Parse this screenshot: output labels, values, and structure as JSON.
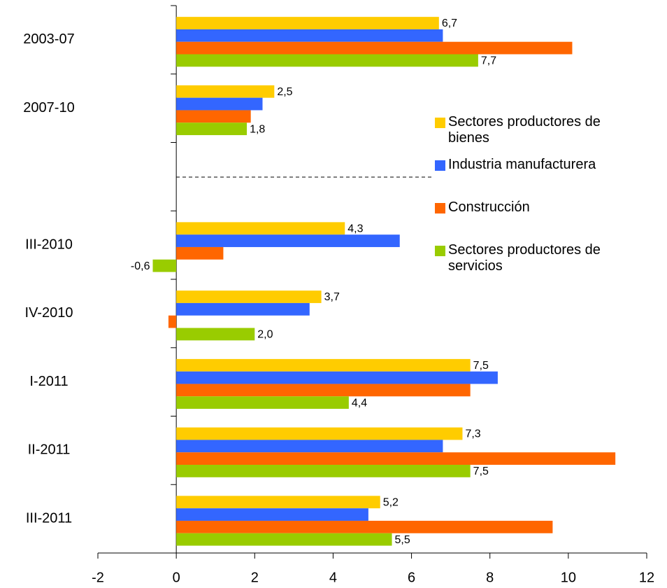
{
  "chart_data": {
    "type": "bar",
    "orientation": "horizontal",
    "categories": [
      "2003-07",
      "2007-10",
      null,
      "III-2010",
      "IV-2010",
      "I-2011",
      "II-2011",
      "III-2011"
    ],
    "series": [
      {
        "name": "Sectores productores de bienes",
        "color": "#ffcc00",
        "values": [
          6.7,
          2.5,
          null,
          4.3,
          3.7,
          7.5,
          7.3,
          5.2
        ],
        "value_labels": [
          "6,7",
          "2,5",
          null,
          "4,3",
          "3,7",
          "7,5",
          "7,3",
          "5,2"
        ]
      },
      {
        "name": "Industria manufacturera",
        "color": "#3366ff",
        "values": [
          6.8,
          2.2,
          null,
          5.7,
          3.4,
          8.2,
          6.8,
          4.9
        ]
      },
      {
        "name": "Construcción",
        "color": "#ff6600",
        "values": [
          10.1,
          1.9,
          null,
          1.2,
          -0.2,
          7.5,
          11.2,
          9.6
        ]
      },
      {
        "name": "Sectores productores de servicios",
        "color": "#99cc00",
        "values": [
          7.7,
          1.8,
          null,
          -0.6,
          2.0,
          4.4,
          7.5,
          5.5
        ],
        "value_labels": [
          "7,7",
          "1,8",
          null,
          "-0,6",
          "2,0",
          "4,4",
          "7,5",
          "5,5"
        ]
      }
    ],
    "xlim": [
      -2,
      12
    ],
    "xticks": [
      -2,
      0,
      2,
      4,
      6,
      8,
      10,
      12
    ],
    "grid": false
  }
}
